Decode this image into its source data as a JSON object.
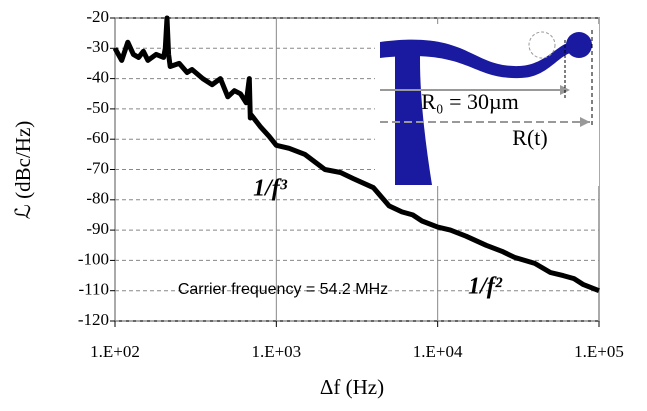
{
  "chart_data": {
    "type": "line",
    "ylabel": "ℒ (dBc/Hz)",
    "xlabel": "Δf (Hz)",
    "log_x": true,
    "grid": true,
    "color": "#000000",
    "x": [
      100,
      110,
      120,
      130,
      140,
      150,
      160,
      180,
      200,
      205,
      210,
      215,
      220,
      250,
      280,
      300,
      350,
      400,
      450,
      500,
      550,
      600,
      650,
      680,
      690,
      700,
      800,
      900,
      1000,
      1200,
      1500,
      2000,
      2500,
      3000,
      4000,
      5000,
      6000,
      7000,
      8000,
      10000,
      12000,
      15000,
      20000,
      25000,
      30000,
      40000,
      50000,
      60000,
      70000,
      80000,
      100000
    ],
    "y": [
      -30,
      -34,
      -28,
      -32,
      -33,
      -31,
      -34,
      -32,
      -33,
      -30,
      -20,
      -32,
      -36,
      -35,
      -38,
      -37,
      -40,
      -42,
      -40,
      -46,
      -44,
      -45,
      -48,
      -40,
      -53,
      -52,
      -56,
      -59,
      -62,
      -63,
      -65,
      -70,
      -71,
      -73,
      -76,
      -82,
      -84,
      -85,
      -87,
      -89,
      -90,
      -92,
      -95,
      -97,
      -99,
      -101,
      -104,
      -105,
      -106,
      -108,
      -110
    ],
    "xlim": [
      100,
      100000
    ],
    "xticks": [
      {
        "value": 100,
        "label": "1.E+02"
      },
      {
        "value": 1000,
        "label": "1.E+03"
      },
      {
        "value": 10000,
        "label": "1.E+04"
      },
      {
        "value": 100000,
        "label": "1.E+05"
      }
    ],
    "ylim": [
      -120,
      -20
    ],
    "yticks": [
      -120,
      -110,
      -100,
      -90,
      -80,
      -70,
      -60,
      -50,
      -40,
      -30,
      -20
    ],
    "annotations": [
      "1/f³",
      "1/f²",
      "Carrier frequency = 54.2 MHz"
    ],
    "inset_labels": [
      "R₀ = 30µm",
      "R(t)"
    ]
  }
}
